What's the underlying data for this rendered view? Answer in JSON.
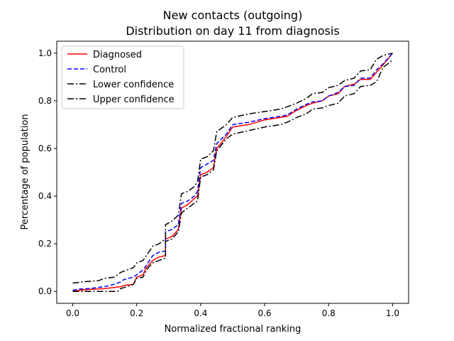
{
  "chart_data": {
    "type": "line",
    "title": "New contacts (outgoing)",
    "subtitle": "Distribution on day 11 from diagnosis",
    "xlabel": "Normalized fractional ranking",
    "ylabel": "Percentage of population",
    "xlim": [
      -0.05,
      1.05
    ],
    "ylim": [
      -0.05,
      1.05
    ],
    "xticks": [
      0.0,
      0.2,
      0.4,
      0.6,
      0.8,
      1.0
    ],
    "yticks": [
      0.0,
      0.2,
      0.4,
      0.6,
      0.8,
      1.0
    ],
    "xtick_labels": [
      "0.0",
      "0.2",
      "0.4",
      "0.6",
      "0.8",
      "1.0"
    ],
    "ytick_labels": [
      "0.0",
      "0.2",
      "0.4",
      "0.6",
      "0.8",
      "1.0"
    ],
    "grid": false,
    "legend_position": "top-left",
    "series": [
      {
        "name": "Diagnosed",
        "color": "#ff0000",
        "dash": "solid",
        "points": [
          [
            0.0,
            0.0
          ],
          [
            0.02,
            0.005
          ],
          [
            0.05,
            0.008
          ],
          [
            0.1,
            0.012
          ],
          [
            0.15,
            0.02
          ],
          [
            0.16,
            0.025
          ],
          [
            0.19,
            0.03
          ],
          [
            0.2,
            0.06
          ],
          [
            0.22,
            0.07
          ],
          [
            0.23,
            0.1
          ],
          [
            0.25,
            0.13
          ],
          [
            0.27,
            0.145
          ],
          [
            0.29,
            0.15
          ],
          [
            0.29,
            0.22
          ],
          [
            0.31,
            0.23
          ],
          [
            0.33,
            0.26
          ],
          [
            0.34,
            0.35
          ],
          [
            0.36,
            0.365
          ],
          [
            0.38,
            0.39
          ],
          [
            0.39,
            0.4
          ],
          [
            0.4,
            0.49
          ],
          [
            0.42,
            0.5
          ],
          [
            0.44,
            0.52
          ],
          [
            0.45,
            0.6
          ],
          [
            0.48,
            0.65
          ],
          [
            0.5,
            0.69
          ],
          [
            0.55,
            0.7
          ],
          [
            0.6,
            0.72
          ],
          [
            0.65,
            0.73
          ],
          [
            0.67,
            0.735
          ],
          [
            0.7,
            0.76
          ],
          [
            0.73,
            0.78
          ],
          [
            0.75,
            0.79
          ],
          [
            0.78,
            0.8
          ],
          [
            0.8,
            0.82
          ],
          [
            0.83,
            0.83
          ],
          [
            0.85,
            0.86
          ],
          [
            0.88,
            0.87
          ],
          [
            0.9,
            0.89
          ],
          [
            0.93,
            0.89
          ],
          [
            0.95,
            0.92
          ],
          [
            0.97,
            0.95
          ],
          [
            1.0,
            1.0
          ]
        ]
      },
      {
        "name": "Control",
        "color": "#0000ff",
        "dash": "dashed",
        "points": [
          [
            0.0,
            0.005
          ],
          [
            0.02,
            0.01
          ],
          [
            0.05,
            0.012
          ],
          [
            0.1,
            0.02
          ],
          [
            0.13,
            0.03
          ],
          [
            0.15,
            0.04
          ],
          [
            0.16,
            0.05
          ],
          [
            0.19,
            0.06
          ],
          [
            0.2,
            0.07
          ],
          [
            0.22,
            0.09
          ],
          [
            0.23,
            0.11
          ],
          [
            0.25,
            0.15
          ],
          [
            0.27,
            0.165
          ],
          [
            0.29,
            0.17
          ],
          [
            0.29,
            0.25
          ],
          [
            0.31,
            0.26
          ],
          [
            0.33,
            0.28
          ],
          [
            0.34,
            0.37
          ],
          [
            0.36,
            0.38
          ],
          [
            0.38,
            0.4
          ],
          [
            0.39,
            0.42
          ],
          [
            0.4,
            0.52
          ],
          [
            0.42,
            0.535
          ],
          [
            0.44,
            0.55
          ],
          [
            0.45,
            0.62
          ],
          [
            0.48,
            0.66
          ],
          [
            0.5,
            0.7
          ],
          [
            0.55,
            0.71
          ],
          [
            0.6,
            0.725
          ],
          [
            0.65,
            0.735
          ],
          [
            0.67,
            0.74
          ],
          [
            0.7,
            0.765
          ],
          [
            0.73,
            0.785
          ],
          [
            0.75,
            0.795
          ],
          [
            0.78,
            0.8
          ],
          [
            0.8,
            0.82
          ],
          [
            0.83,
            0.835
          ],
          [
            0.85,
            0.86
          ],
          [
            0.88,
            0.865
          ],
          [
            0.9,
            0.895
          ],
          [
            0.93,
            0.895
          ],
          [
            0.95,
            0.93
          ],
          [
            0.97,
            0.955
          ],
          [
            1.0,
            1.0
          ]
        ]
      },
      {
        "name": "Lower confidence",
        "color": "#000000",
        "dash": "dashdot",
        "points": [
          [
            0.0,
            0.0
          ],
          [
            0.05,
            0.0
          ],
          [
            0.1,
            0.0
          ],
          [
            0.14,
            0.0
          ],
          [
            0.15,
            0.012
          ],
          [
            0.17,
            0.02
          ],
          [
            0.19,
            0.03
          ],
          [
            0.2,
            0.055
          ],
          [
            0.22,
            0.06
          ],
          [
            0.23,
            0.09
          ],
          [
            0.25,
            0.12
          ],
          [
            0.27,
            0.13
          ],
          [
            0.29,
            0.14
          ],
          [
            0.29,
            0.21
          ],
          [
            0.31,
            0.22
          ],
          [
            0.33,
            0.25
          ],
          [
            0.34,
            0.33
          ],
          [
            0.36,
            0.35
          ],
          [
            0.38,
            0.37
          ],
          [
            0.39,
            0.38
          ],
          [
            0.4,
            0.48
          ],
          [
            0.42,
            0.49
          ],
          [
            0.44,
            0.51
          ],
          [
            0.45,
            0.59
          ],
          [
            0.48,
            0.64
          ],
          [
            0.5,
            0.66
          ],
          [
            0.55,
            0.675
          ],
          [
            0.6,
            0.69
          ],
          [
            0.65,
            0.7
          ],
          [
            0.67,
            0.71
          ],
          [
            0.7,
            0.73
          ],
          [
            0.73,
            0.745
          ],
          [
            0.75,
            0.765
          ],
          [
            0.78,
            0.77
          ],
          [
            0.8,
            0.78
          ],
          [
            0.83,
            0.79
          ],
          [
            0.85,
            0.82
          ],
          [
            0.88,
            0.83
          ],
          [
            0.9,
            0.86
          ],
          [
            0.93,
            0.865
          ],
          [
            0.95,
            0.88
          ],
          [
            0.97,
            0.94
          ],
          [
            1.0,
            0.97
          ]
        ]
      },
      {
        "name": "Upper confidence",
        "color": "#000000",
        "dash": "dashdot",
        "points": [
          [
            0.0,
            0.035
          ],
          [
            0.03,
            0.04
          ],
          [
            0.08,
            0.045
          ],
          [
            0.1,
            0.055
          ],
          [
            0.13,
            0.06
          ],
          [
            0.15,
            0.08
          ],
          [
            0.17,
            0.09
          ],
          [
            0.19,
            0.1
          ],
          [
            0.2,
            0.12
          ],
          [
            0.22,
            0.13
          ],
          [
            0.23,
            0.15
          ],
          [
            0.25,
            0.19
          ],
          [
            0.27,
            0.2
          ],
          [
            0.29,
            0.22
          ],
          [
            0.29,
            0.28
          ],
          [
            0.31,
            0.295
          ],
          [
            0.33,
            0.32
          ],
          [
            0.34,
            0.41
          ],
          [
            0.36,
            0.42
          ],
          [
            0.38,
            0.44
          ],
          [
            0.39,
            0.46
          ],
          [
            0.4,
            0.555
          ],
          [
            0.42,
            0.565
          ],
          [
            0.44,
            0.59
          ],
          [
            0.45,
            0.67
          ],
          [
            0.48,
            0.7
          ],
          [
            0.5,
            0.73
          ],
          [
            0.55,
            0.745
          ],
          [
            0.6,
            0.755
          ],
          [
            0.65,
            0.765
          ],
          [
            0.67,
            0.775
          ],
          [
            0.7,
            0.79
          ],
          [
            0.73,
            0.81
          ],
          [
            0.75,
            0.83
          ],
          [
            0.78,
            0.835
          ],
          [
            0.8,
            0.855
          ],
          [
            0.83,
            0.865
          ],
          [
            0.85,
            0.885
          ],
          [
            0.88,
            0.895
          ],
          [
            0.9,
            0.925
          ],
          [
            0.93,
            0.93
          ],
          [
            0.95,
            0.975
          ],
          [
            0.97,
            0.99
          ],
          [
            1.0,
            1.0
          ]
        ]
      }
    ]
  }
}
